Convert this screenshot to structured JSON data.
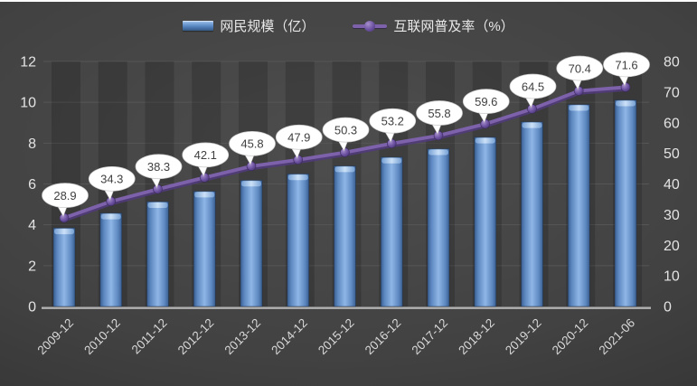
{
  "chart_data": {
    "type": "combo",
    "title": "",
    "categories": [
      "2009-12",
      "2010-12",
      "2011-12",
      "2012-12",
      "2013-12",
      "2014-12",
      "2015-12",
      "2016-12",
      "2017-12",
      "2018-12",
      "2019-12",
      "2020-12",
      "2021-06"
    ],
    "series": [
      {
        "name": "网民规模（亿）",
        "type": "bar",
        "axis": "left",
        "values": [
          3.84,
          4.57,
          5.13,
          5.64,
          6.18,
          6.49,
          6.88,
          7.31,
          7.72,
          8.29,
          9.04,
          9.89,
          10.11
        ]
      },
      {
        "name": "互联网普及率（%）",
        "type": "line",
        "axis": "right",
        "data_labels": "callout-bubbles",
        "values": [
          28.9,
          34.3,
          38.3,
          42.1,
          45.8,
          47.9,
          50.3,
          53.2,
          55.8,
          59.6,
          64.5,
          70.4,
          71.6
        ]
      }
    ],
    "left_axis": {
      "min": 0,
      "max": 12,
      "ticks": [
        0,
        2,
        4,
        6,
        8,
        10,
        12
      ]
    },
    "right_axis": {
      "min": 0,
      "max": 80,
      "ticks": [
        0,
        10,
        20,
        30,
        40,
        50,
        60,
        70,
        80
      ]
    },
    "grid": true,
    "legend_position": "top",
    "x_label_rotation": -45,
    "colors": {
      "background_center": "#4a4a4a",
      "background_edge": "#282828",
      "bar_light": "#8fb6e6",
      "bar_mid": "#5d88c0",
      "bar_dark": "#3a5f92",
      "bar_cap_light": "#cfe3f8",
      "bar_cap_edge": "#79a3d6",
      "line": "#7d62ab",
      "line_shadow": "#523b7c",
      "marker_light": "#a78fcc",
      "marker_dark": "#48326f",
      "gridline": "#565656",
      "axis_line": "#b2b2b2",
      "axis_text": "#e3e3e3",
      "x_axis_text": "#d9d9d9",
      "callout_bg": "#ffffff",
      "callout_border": "#c9c9c9",
      "callout_text": "#3f3f3f"
    }
  }
}
